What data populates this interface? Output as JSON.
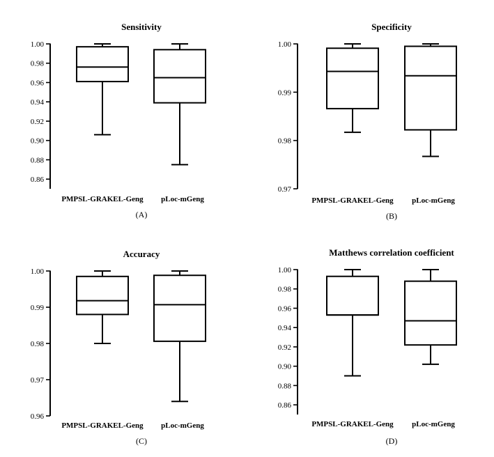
{
  "chart_data": [
    {
      "type": "box",
      "title": "Sensitivity",
      "panel_label": "(A)",
      "categories": [
        "PMPSL-GRAKEL-Geng",
        "pLoc-mGeng"
      ],
      "ylim": [
        0.85,
        1.0
      ],
      "yticks": [
        0.86,
        0.88,
        0.9,
        0.92,
        0.94,
        0.96,
        0.98,
        1.0
      ],
      "ytick_labels": [
        "0.86",
        "0.88",
        "0.90",
        "0.92",
        "0.94",
        "0.96",
        "0.98",
        "1.00"
      ],
      "boxes": [
        {
          "min": 0.906,
          "q1": 0.961,
          "median": 0.976,
          "q3": 0.997,
          "max": 1.0
        },
        {
          "min": 0.875,
          "q1": 0.939,
          "median": 0.965,
          "q3": 0.994,
          "max": 1.0
        }
      ]
    },
    {
      "type": "box",
      "title": "Specificity",
      "panel_label": "(B)",
      "categories": [
        "PMPSL-GRAKEL-Geng",
        "pLoc-mGeng"
      ],
      "ylim": [
        0.97,
        1.0
      ],
      "yticks": [
        0.97,
        0.98,
        0.99,
        1.0
      ],
      "ytick_labels": [
        "0.97",
        "0.98",
        "0.99",
        "1.00"
      ],
      "boxes": [
        {
          "min": 0.9817,
          "q1": 0.9866,
          "median": 0.9943,
          "q3": 0.9991,
          "max": 1.0
        },
        {
          "min": 0.9767,
          "q1": 0.9822,
          "median": 0.9934,
          "q3": 0.9995,
          "max": 1.0
        }
      ]
    },
    {
      "type": "box",
      "title": "Accuracy",
      "panel_label": "(C)",
      "categories": [
        "PMPSL-GRAKEL-Geng",
        "pLoc-mGeng"
      ],
      "ylim": [
        0.96,
        1.0
      ],
      "yticks": [
        0.96,
        0.97,
        0.98,
        0.99,
        1.0
      ],
      "ytick_labels": [
        "0.96",
        "0.97",
        "0.98",
        "0.99",
        "1.00"
      ],
      "boxes": [
        {
          "min": 0.98,
          "q1": 0.988,
          "median": 0.9918,
          "q3": 0.9985,
          "max": 1.0
        },
        {
          "min": 0.964,
          "q1": 0.9806,
          "median": 0.9907,
          "q3": 0.9988,
          "max": 1.0
        }
      ]
    },
    {
      "type": "box",
      "title": "Matthews correlation coefficient",
      "panel_label": "(D)",
      "categories": [
        "PMPSL-GRAKEL-Geng",
        "pLoc-mGeng"
      ],
      "ylim": [
        0.85,
        1.0
      ],
      "yticks": [
        0.86,
        0.88,
        0.9,
        0.92,
        0.94,
        0.96,
        0.98,
        1.0
      ],
      "ytick_labels": [
        "0.86",
        "0.88",
        "0.90",
        "0.92",
        "0.94",
        "0.96",
        "0.98",
        "1.00"
      ],
      "boxes": [
        {
          "min": 0.89,
          "q1": 0.953,
          "median": 0.953,
          "q3": 0.993,
          "max": 1.0
        },
        {
          "min": 0.902,
          "q1": 0.922,
          "median": 0.947,
          "q3": 0.988,
          "max": 1.0
        }
      ]
    }
  ]
}
